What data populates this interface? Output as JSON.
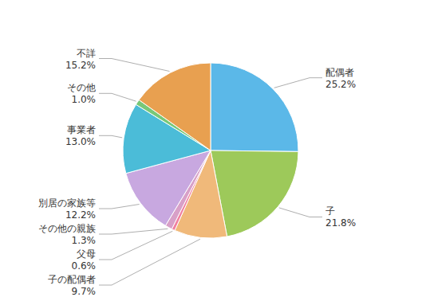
{
  "chart_data": {
    "type": "pie",
    "categories": [
      "配偶者",
      "子",
      "子の配偶者",
      "父母",
      "その他の親族",
      "別居の家族等",
      "事業者",
      "その他",
      "不詳"
    ],
    "values": [
      25.2,
      21.8,
      9.7,
      0.6,
      1.3,
      12.2,
      13.0,
      1.0,
      15.2
    ],
    "value_labels": [
      "25.2%",
      "21.8%",
      "9.7%",
      "0.6%",
      "1.3%",
      "12.2%",
      "13.0%",
      "1.0%",
      "15.2%"
    ],
    "colors": [
      "#5BB8E8",
      "#9DC95A",
      "#F0B97A",
      "#F080A0",
      "#D8A0C8",
      "#C8A8E0",
      "#4BBCD8",
      "#78C878",
      "#E8A050"
    ],
    "data_labels": true
  }
}
